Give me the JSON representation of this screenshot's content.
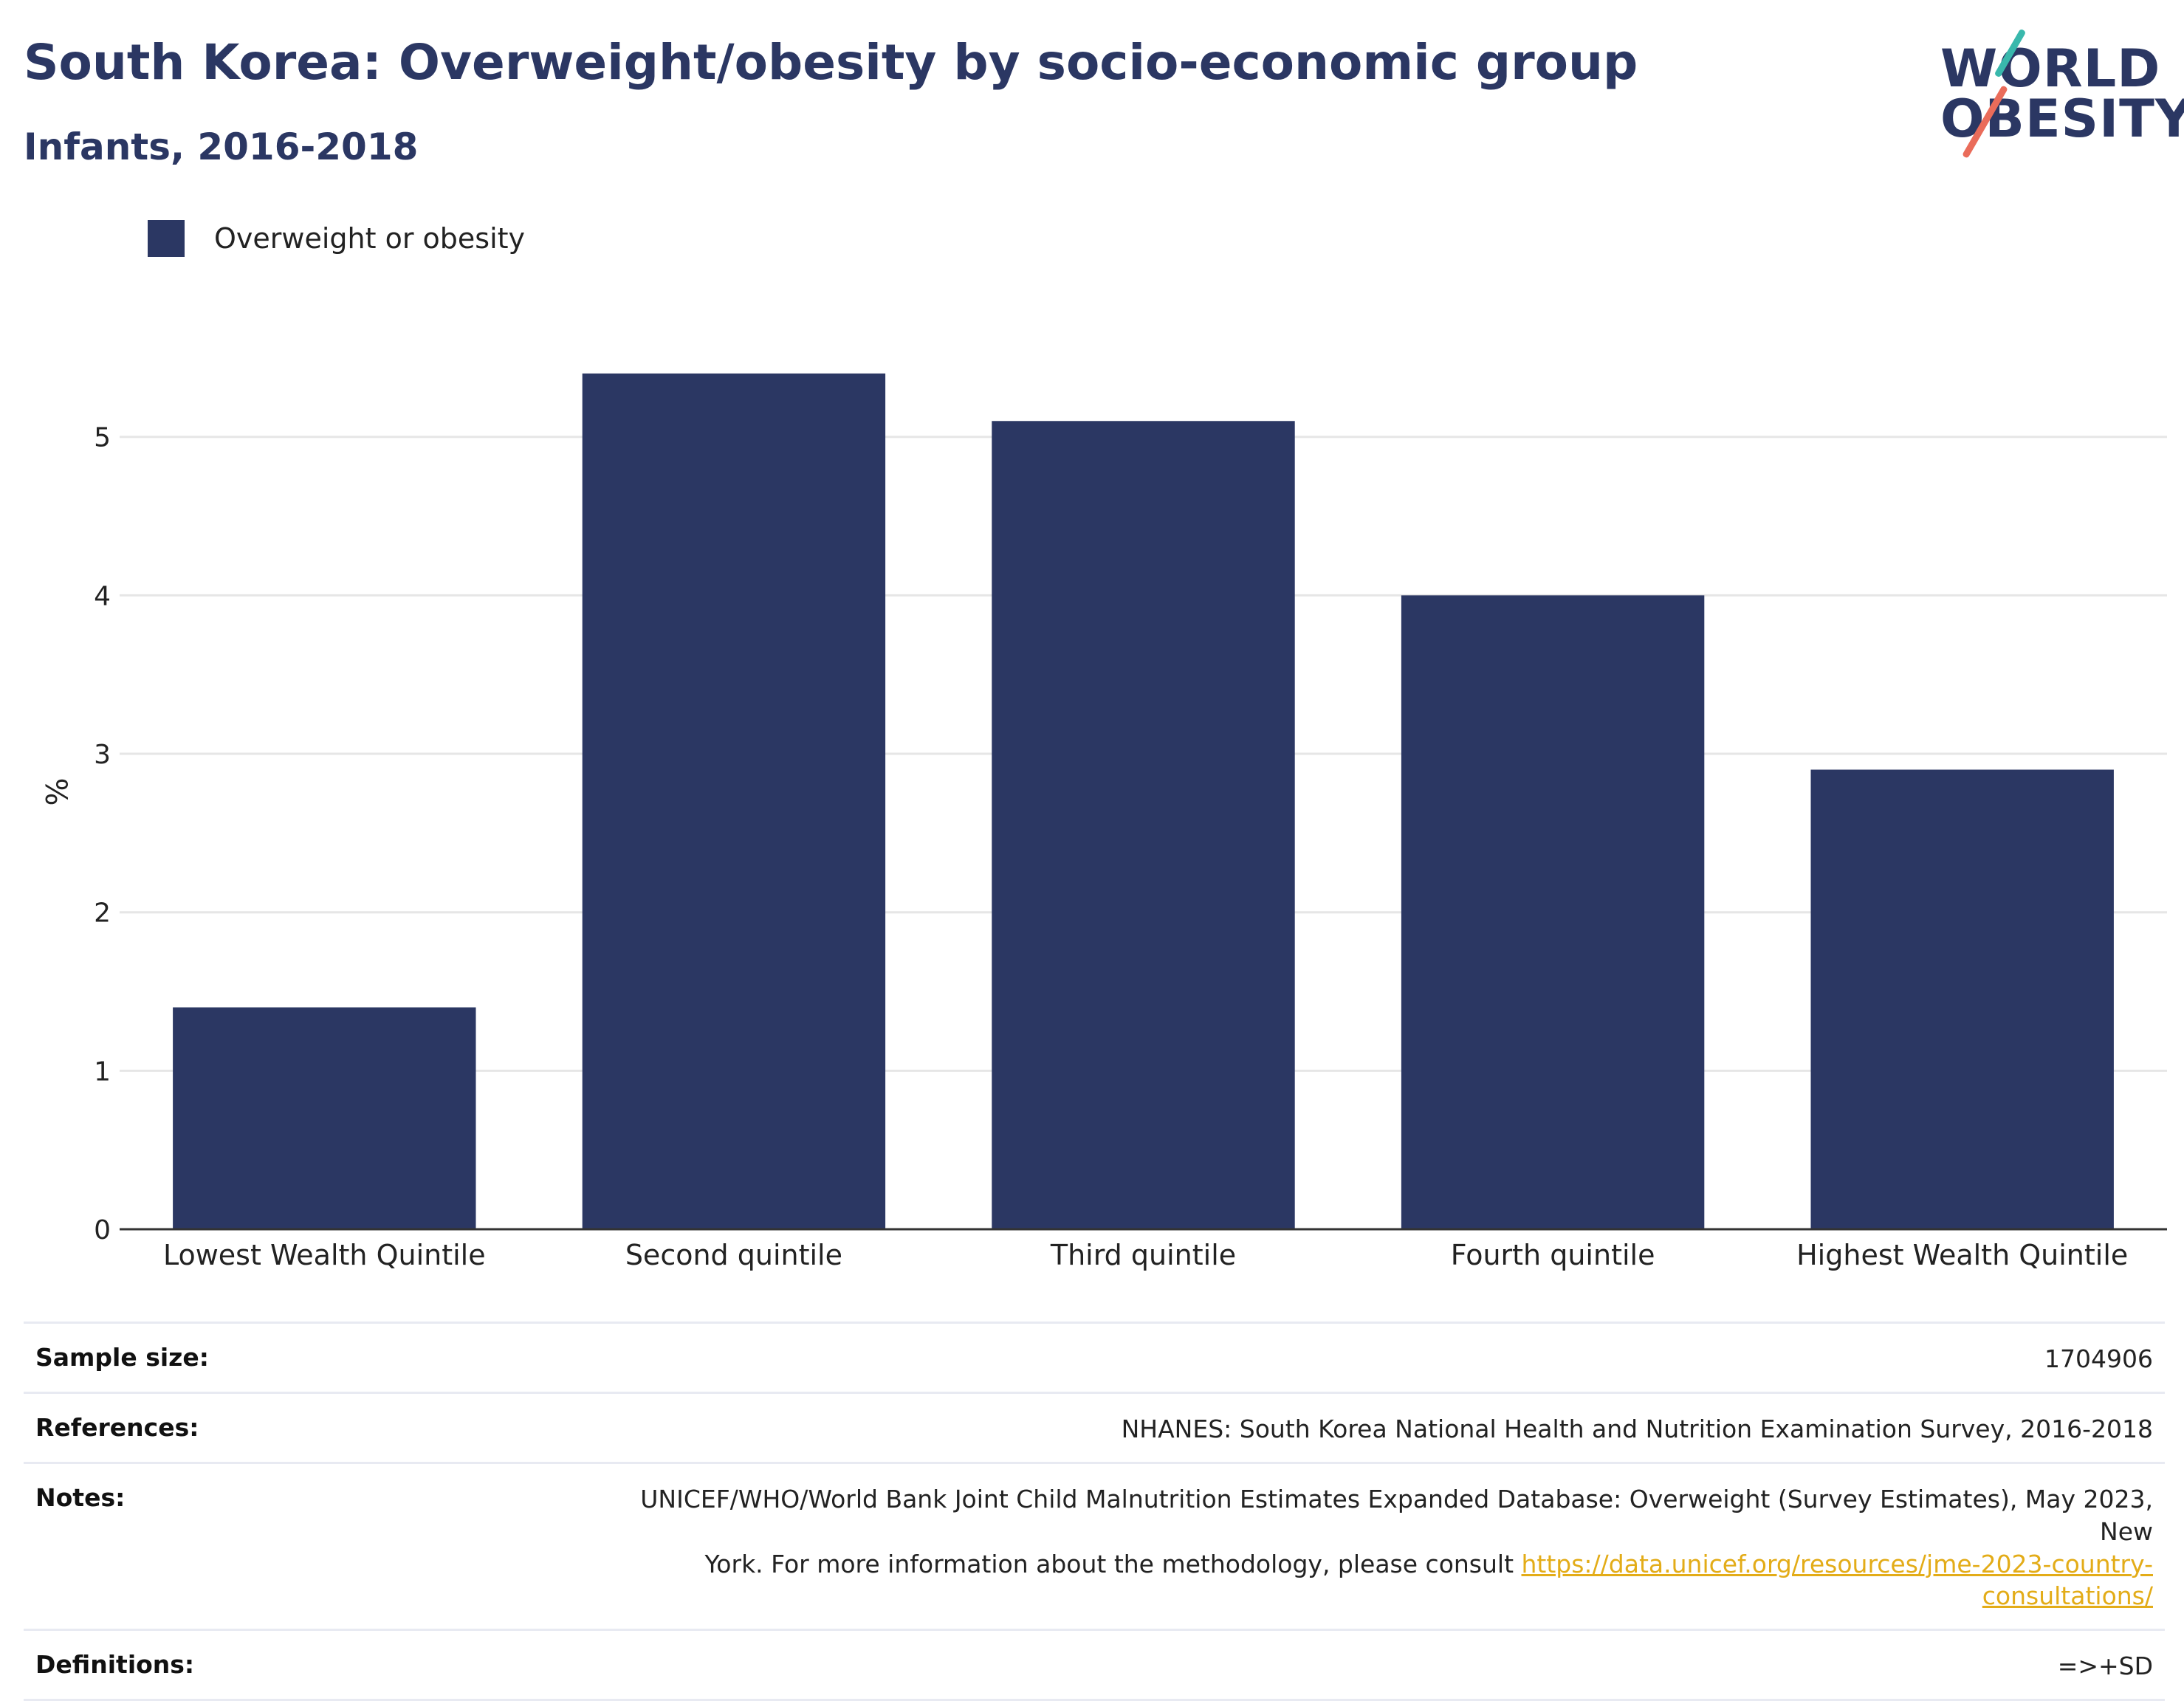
{
  "header": {
    "title": "South Korea: Overweight/obesity by socio-economic group",
    "subtitle": "Infants, 2016-2018"
  },
  "logo": {
    "line1": "WORLD",
    "line2": "OBESITY"
  },
  "colors": {
    "bar": "#2b3763",
    "title": "#2b3763",
    "link": "#e3ac18",
    "logo_teal": "#39b8ac",
    "logo_red": "#ea6c5a"
  },
  "chart_data": {
    "type": "bar",
    "categories": [
      "Lowest Wealth Quintile",
      "Second quintile",
      "Third quintile",
      "Fourth quintile",
      "Highest Wealth Quintile"
    ],
    "series": [
      {
        "name": "Overweight or obesity",
        "values": [
          1.4,
          5.4,
          5.1,
          4.0,
          2.9
        ]
      }
    ],
    "title": "South Korea: Overweight/obesity by socio-economic group",
    "subtitle": "Infants, 2016-2018",
    "xlabel": "",
    "ylabel": "%",
    "ylim": [
      0,
      5.8
    ],
    "yticks": [
      0,
      1,
      2,
      3,
      4,
      5
    ],
    "grid": true,
    "legend": "top-left"
  },
  "info": {
    "sample_size": {
      "label": "Sample size:",
      "value": "1704906"
    },
    "references": {
      "label": "References:",
      "value": "NHANES: South Korea National Health and Nutrition Examination Survey, 2016-2018"
    },
    "notes": {
      "label": "Notes:",
      "line1": "UNICEF/WHO/World Bank Joint Child Malnutrition Estimates Expanded Database: Overweight (Survey Estimates), May 2023, New",
      "line2_prefix": "York. For more information about the methodology, please consult ",
      "link": "https://data.unicef.org/resources/jme-2023-country-consultations/"
    },
    "definitions": {
      "label": "Definitions:",
      "value": "=>+SD"
    }
  }
}
